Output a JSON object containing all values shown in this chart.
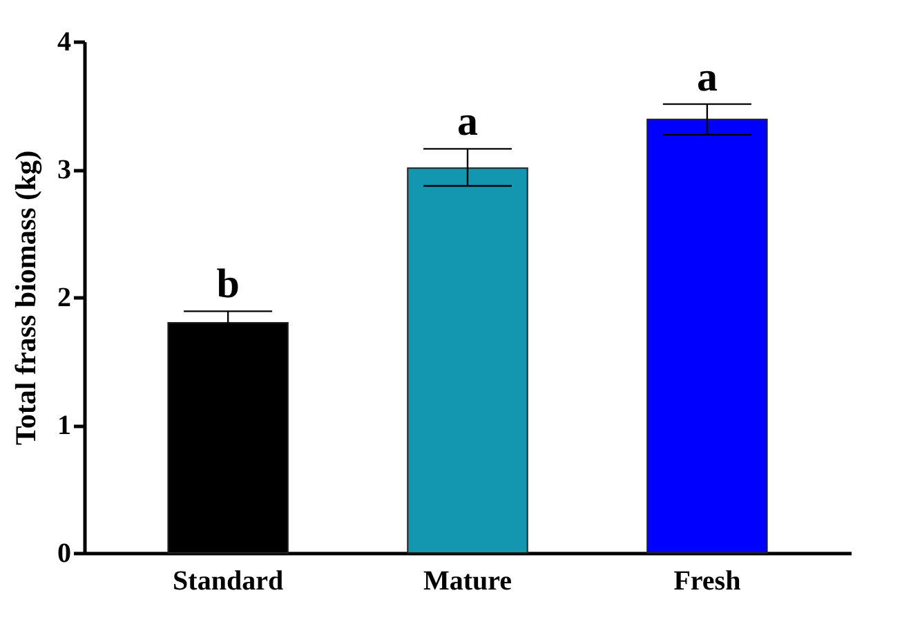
{
  "chart_data": {
    "type": "bar",
    "ylabel": "Total frass biomass (kg)",
    "categories": [
      "Standard",
      "Mature",
      "Fresh"
    ],
    "values": [
      1.8,
      3.01,
      3.39
    ],
    "colors": [
      "#000000",
      "#1396b0",
      "#0000ff"
    ],
    "errors": [
      0.09,
      [
        2.87,
        3.16
      ],
      0.12
    ],
    "ylim": [
      0,
      4
    ],
    "yticks": [
      0,
      1,
      2,
      3,
      4
    ],
    "grid": false,
    "legend": false,
    "annotations": [
      {
        "text": "b",
        "x": "Standard",
        "y": 1.89
      },
      {
        "text": "a",
        "x": "Mature",
        "y": 3.16
      },
      {
        "text": "a",
        "x": "Fresh",
        "y": 3.51
      }
    ]
  }
}
